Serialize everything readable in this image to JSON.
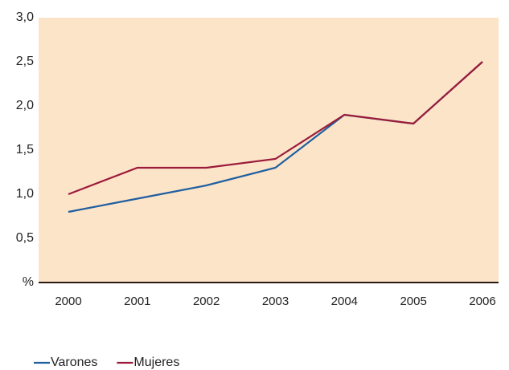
{
  "chart_data": {
    "type": "line",
    "categories": [
      "2000",
      "2001",
      "2002",
      "2003",
      "2004",
      "2005",
      "2006"
    ],
    "series": [
      {
        "name": "Varones",
        "color": "#1f5fa0",
        "values": [
          0.8,
          0.95,
          1.1,
          1.3,
          1.9,
          1.8,
          2.5
        ]
      },
      {
        "name": "Mujeres",
        "color": "#9b1b3a",
        "values": [
          1.0,
          1.3,
          1.3,
          1.4,
          1.9,
          1.8,
          2.5
        ]
      }
    ],
    "ylim": [
      0,
      3
    ],
    "yticks": [
      {
        "value": 0,
        "label": "%"
      },
      {
        "value": 0.5,
        "label": "0,5"
      },
      {
        "value": 1,
        "label": "1,0"
      },
      {
        "value": 1.5,
        "label": "1,5"
      },
      {
        "value": 2,
        "label": "2,0"
      },
      {
        "value": 2.5,
        "label": "2,5"
      },
      {
        "value": 3,
        "label": "3,0"
      }
    ],
    "grid": false,
    "legend": "bottom-left",
    "background": "#fce4c9"
  }
}
